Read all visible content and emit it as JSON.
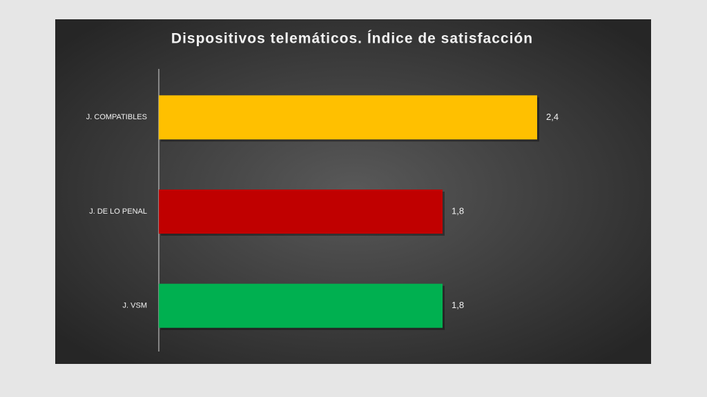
{
  "chart_data": {
    "type": "barh",
    "title": "Dispositivos  telemáticos.  Índice de satisfacción",
    "categories": [
      "J. COMPATIBLES",
      "J. DE LO PENAL",
      "J. VSM"
    ],
    "values": [
      2.4,
      1.8,
      1.8
    ],
    "value_labels": [
      "2,4",
      "1,8",
      "1,8"
    ],
    "colors": [
      "#ffc000",
      "#c00000",
      "#00b050"
    ],
    "xlim": [
      0,
      3
    ]
  }
}
